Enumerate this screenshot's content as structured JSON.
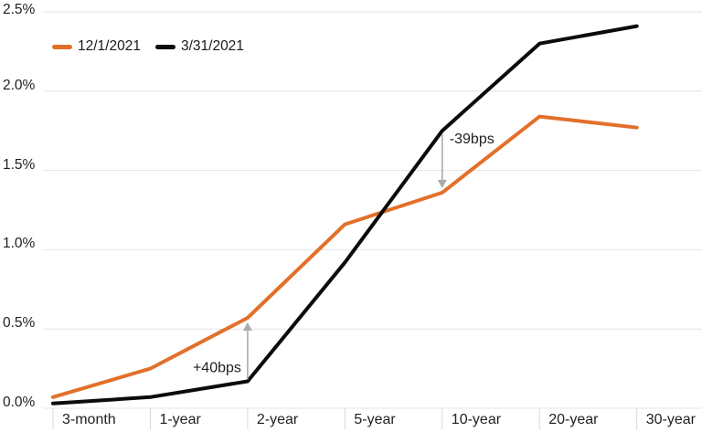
{
  "colors": {
    "background": "#ffffff",
    "grid": "#e4e4e4",
    "separator": "#d8d8d8",
    "axis_text": "#1f1f1f",
    "annotation_text": "#1f1f1f",
    "annotation_arrow": "#ababab",
    "series_orange": "#e2702a",
    "series_black": "#0b0b0b"
  },
  "chart_data": {
    "type": "line",
    "categories": [
      "3-month",
      "1-year",
      "2-year",
      "5-year",
      "10-year",
      "20-year",
      "30-year"
    ],
    "series": [
      {
        "name": "12/1/2021",
        "color": "#e2702a",
        "values": [
          0.07,
          0.25,
          0.57,
          1.16,
          1.36,
          1.84,
          1.77
        ]
      },
      {
        "name": "3/31/2021",
        "color": "#0b0b0b",
        "values": [
          0.03,
          0.07,
          0.17,
          0.92,
          1.75,
          2.3,
          2.41
        ]
      }
    ],
    "ylim": [
      0,
      2.5
    ],
    "yticks": [
      {
        "label": "0.0%",
        "value": 0.0
      },
      {
        "label": "0.5%",
        "value": 0.5
      },
      {
        "label": "1.0%",
        "value": 1.0
      },
      {
        "label": "1.5%",
        "value": 1.5
      },
      {
        "label": "2.0%",
        "value": 2.0
      },
      {
        "label": "2.5%",
        "value": 2.5
      }
    ],
    "grid": true,
    "legend_position": "top-left",
    "annotations": [
      {
        "text": "+40bps",
        "category": "2-year",
        "category_index": 2,
        "direction": "up",
        "label_side": "left"
      },
      {
        "text": "-39bps",
        "category": "10-year",
        "category_index": 4,
        "direction": "down",
        "label_side": "right"
      }
    ]
  }
}
